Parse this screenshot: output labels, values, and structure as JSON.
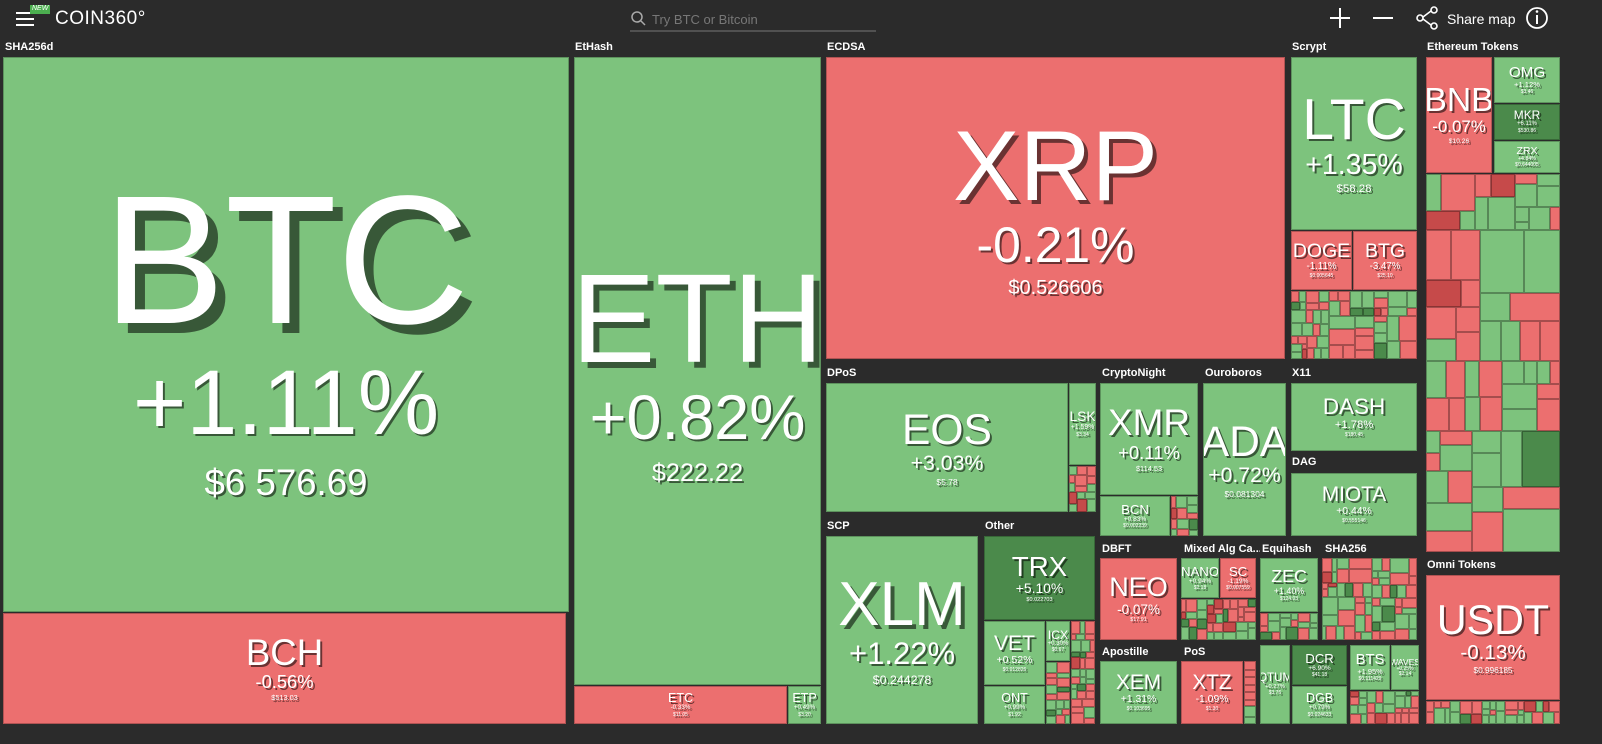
{
  "header": {
    "badge": "NEW",
    "logo": "COIN360°",
    "search_placeholder": "Try BTC or Bitcoin",
    "share": "Share map"
  },
  "groups": [
    {
      "name": "SHA256d",
      "tiles": [
        {
          "symbol": "BTC",
          "change": "+1.11%",
          "price": "$6 576.69"
        },
        {
          "symbol": "BCH",
          "change": "-0.56%",
          "price": "$513.03"
        }
      ]
    },
    {
      "name": "EtHash",
      "tiles": [
        {
          "symbol": "ETH",
          "change": "+0.82%",
          "price": "$222.22"
        },
        {
          "symbol": "ETC",
          "change": "-0.33%",
          "price": "$11.05"
        },
        {
          "symbol": "ETP",
          "change": "+0.49%",
          "price": "$3.20"
        }
      ]
    },
    {
      "name": "ECDSA",
      "tiles": [
        {
          "symbol": "XRP",
          "change": "-0.21%",
          "price": "$0.526606"
        }
      ]
    },
    {
      "name": "Scrypt",
      "tiles": [
        {
          "symbol": "LTC",
          "change": "+1.35%",
          "price": "$58.28"
        },
        {
          "symbol": "DOGE",
          "change": "-1.11%",
          "price": "$0.005645"
        },
        {
          "symbol": "BTG",
          "change": "-3.47%",
          "price": "$25.10"
        }
      ]
    },
    {
      "name": "Ethereum Tokens",
      "tiles": [
        {
          "symbol": "BNB",
          "change": "-0.07%",
          "price": "$10.26"
        },
        {
          "symbol": "OMG",
          "change": "+1.12%",
          "price": "$3.46"
        },
        {
          "symbol": "MKR",
          "change": "+6.11%",
          "price": "$530.86"
        },
        {
          "symbol": "ZRX",
          "change": "+4.84%",
          "price": "$0.644005"
        }
      ]
    },
    {
      "name": "Omni Tokens",
      "tiles": [
        {
          "symbol": "USDT",
          "change": "-0.13%",
          "price": "$0.996185"
        }
      ]
    },
    {
      "name": "DPoS",
      "tiles": [
        {
          "symbol": "EOS",
          "change": "+3.03%",
          "price": "$5.78"
        },
        {
          "symbol": "LSK",
          "change": "+1.59%",
          "price": "$3.34"
        }
      ]
    },
    {
      "name": "CryptoNight",
      "tiles": [
        {
          "symbol": "XMR",
          "change": "+0.11%",
          "price": "$114.53"
        },
        {
          "symbol": "BCN",
          "change": "+0.83%",
          "price": "$0.002239"
        }
      ]
    },
    {
      "name": "Ouroboros",
      "tiles": [
        {
          "symbol": "ADA",
          "change": "+0.72%",
          "price": "$0.081304"
        }
      ]
    },
    {
      "name": "X11",
      "tiles": [
        {
          "symbol": "DASH",
          "change": "+1.78%",
          "price": "$180.45"
        }
      ]
    },
    {
      "name": "DAG",
      "tiles": [
        {
          "symbol": "MIOTA",
          "change": "+0.44%",
          "price": "$0.555146"
        }
      ]
    },
    {
      "name": "SCP",
      "tiles": [
        {
          "symbol": "XLM",
          "change": "+1.22%",
          "price": "$0.244278"
        }
      ]
    },
    {
      "name": "Other",
      "tiles": [
        {
          "symbol": "TRX",
          "change": "+5.10%",
          "price": "$0.022703"
        },
        {
          "symbol": "VET",
          "change": "+0.52%",
          "price": "$0.012826"
        },
        {
          "symbol": "ICX",
          "change": "+0.30%",
          "price": "$0.67"
        },
        {
          "symbol": "ONT",
          "change": "+0.99%",
          "price": "$1.92"
        }
      ]
    },
    {
      "name": "DBFT",
      "tiles": [
        {
          "symbol": "NEO",
          "change": "-0.07%",
          "price": "$17.91"
        }
      ]
    },
    {
      "name": "Mixed Alg Ca...",
      "tiles": [
        {
          "symbol": "NANO",
          "change": "+0.94%",
          "price": "$2.18"
        },
        {
          "symbol": "SC",
          "change": "-1.19%",
          "price": "$0.007559"
        }
      ]
    },
    {
      "name": "Equihash",
      "tiles": [
        {
          "symbol": "ZEC",
          "change": "+1.40%",
          "price": "$124.03"
        }
      ]
    },
    {
      "name": "SHA256",
      "tiles": []
    },
    {
      "name": "Apostille",
      "tiles": [
        {
          "symbol": "XEM",
          "change": "+1.31%",
          "price": "$0.103695"
        }
      ]
    },
    {
      "name": "PoS",
      "tiles": [
        {
          "symbol": "XTZ",
          "change": "-1.09%",
          "price": "$1.30"
        },
        {
          "symbol": "QTUM",
          "change": "+0.27%",
          "price": "$3.76"
        },
        {
          "symbol": "DCR",
          "change": "+6.90%",
          "price": "$41.18"
        },
        {
          "symbol": "DGB",
          "change": "+0.79%",
          "price": "$0.024633"
        },
        {
          "symbol": "BTS",
          "change": "+1.95%",
          "price": "$0.111429"
        },
        {
          "symbol": "WAVES",
          "change": "+0.25%",
          "price": "$2.14"
        }
      ]
    }
  ]
}
